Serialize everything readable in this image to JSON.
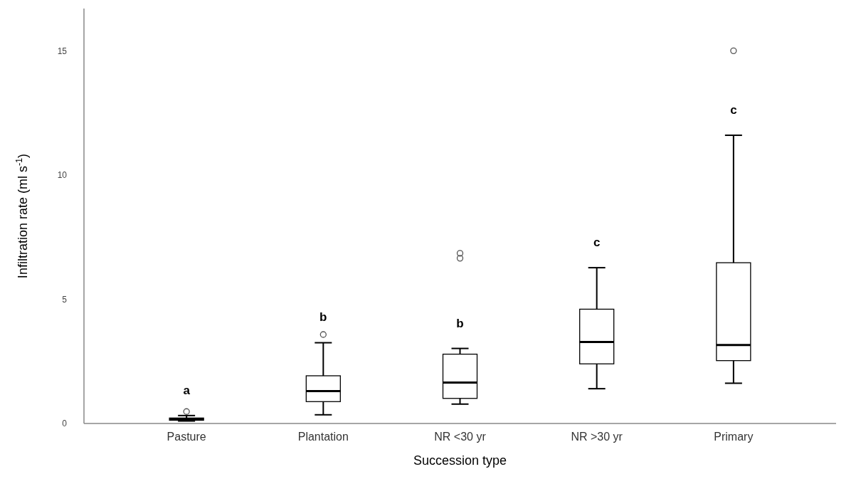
{
  "chart_data": {
    "type": "box",
    "xlabel": "Succession type",
    "ylabel": "Infiltration rate (ml s$^{-1}$)",
    "categories": [
      "Pasture",
      "Plantation",
      "NR <30 yr",
      "NR >30 yr",
      "Primary"
    ],
    "boxes": [
      {
        "low": 0.1,
        "q1": 0.13,
        "median": 0.18,
        "q3": 0.22,
        "high": 0.32,
        "outliers": [
          0.48
        ]
      },
      {
        "low": 0.35,
        "q1": 0.88,
        "median": 1.3,
        "q3": 1.92,
        "high": 3.25,
        "outliers": [
          3.58
        ]
      },
      {
        "low": 0.78,
        "q1": 1.01,
        "median": 1.65,
        "q3": 2.79,
        "high": 3.02,
        "outliers": [
          6.65,
          6.85
        ]
      },
      {
        "low": 1.4,
        "q1": 2.4,
        "median": 3.28,
        "q3": 4.6,
        "high": 6.27
      },
      {
        "low": 1.62,
        "q1": 2.53,
        "median": 3.16,
        "q3": 6.47,
        "high": 11.6,
        "outliers": [
          15
        ]
      }
    ],
    "color": "#000000",
    "ylim": [
      0,
      16.7
    ],
    "yticks": [
      0,
      5,
      10,
      15
    ],
    "grid": false,
    "annotations": [
      "a",
      "b",
      "b",
      "c",
      "c"
    ]
  }
}
